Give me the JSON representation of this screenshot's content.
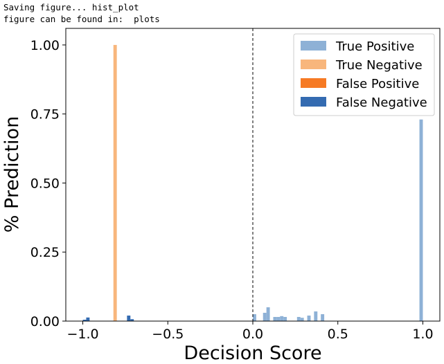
{
  "console": {
    "line1": "Saving figure... hist_plot",
    "line2": "figure can be found in:  plots"
  },
  "chart_data": {
    "type": "bar",
    "title": "",
    "xlabel": "Decision Score",
    "ylabel": "% Prediction",
    "xlim": [
      -1.1,
      1.1
    ],
    "ylim": [
      0,
      1.06
    ],
    "bin_width": 0.02,
    "x_ticks": [
      {
        "value": -1.0,
        "label": "−1.0"
      },
      {
        "value": -0.5,
        "label": "−0.5"
      },
      {
        "value": 0.0,
        "label": "0.0"
      },
      {
        "value": 0.5,
        "label": "0.5"
      },
      {
        "value": 1.0,
        "label": "1.0"
      }
    ],
    "y_ticks": [
      {
        "value": 0.0,
        "label": "0.00"
      },
      {
        "value": 0.25,
        "label": "0.25"
      },
      {
        "value": 0.5,
        "label": "0.50"
      },
      {
        "value": 0.75,
        "label": "0.75"
      },
      {
        "value": 1.0,
        "label": "1.00"
      }
    ],
    "threshold_line": 0.0,
    "grid": false,
    "legend_position": "top-right",
    "series": [
      {
        "name": "True Positive",
        "color": "#8eb1d6",
        "bars": [
          {
            "x": 0.01,
            "y": 0.025
          },
          {
            "x": 0.07,
            "y": 0.03
          },
          {
            "x": 0.09,
            "y": 0.05
          },
          {
            "x": 0.13,
            "y": 0.015
          },
          {
            "x": 0.15,
            "y": 0.015
          },
          {
            "x": 0.17,
            "y": 0.018
          },
          {
            "x": 0.19,
            "y": 0.015
          },
          {
            "x": 0.27,
            "y": 0.015
          },
          {
            "x": 0.29,
            "y": 0.012
          },
          {
            "x": 0.33,
            "y": 0.02
          },
          {
            "x": 0.37,
            "y": 0.035
          },
          {
            "x": 0.41,
            "y": 0.025
          },
          {
            "x": 0.99,
            "y": 0.73
          }
        ]
      },
      {
        "name": "True Negative",
        "color": "#f8b67c",
        "bars": [
          {
            "x": -0.81,
            "y": 1.0
          }
        ]
      },
      {
        "name": "False Positive",
        "color": "#f67a24",
        "bars": []
      },
      {
        "name": "False Negative",
        "color": "#346bb1",
        "bars": [
          {
            "x": -0.99,
            "y": 0.005
          },
          {
            "x": -0.97,
            "y": 0.013
          },
          {
            "x": -0.73,
            "y": 0.02
          },
          {
            "x": -0.71,
            "y": 0.007
          }
        ]
      }
    ]
  }
}
